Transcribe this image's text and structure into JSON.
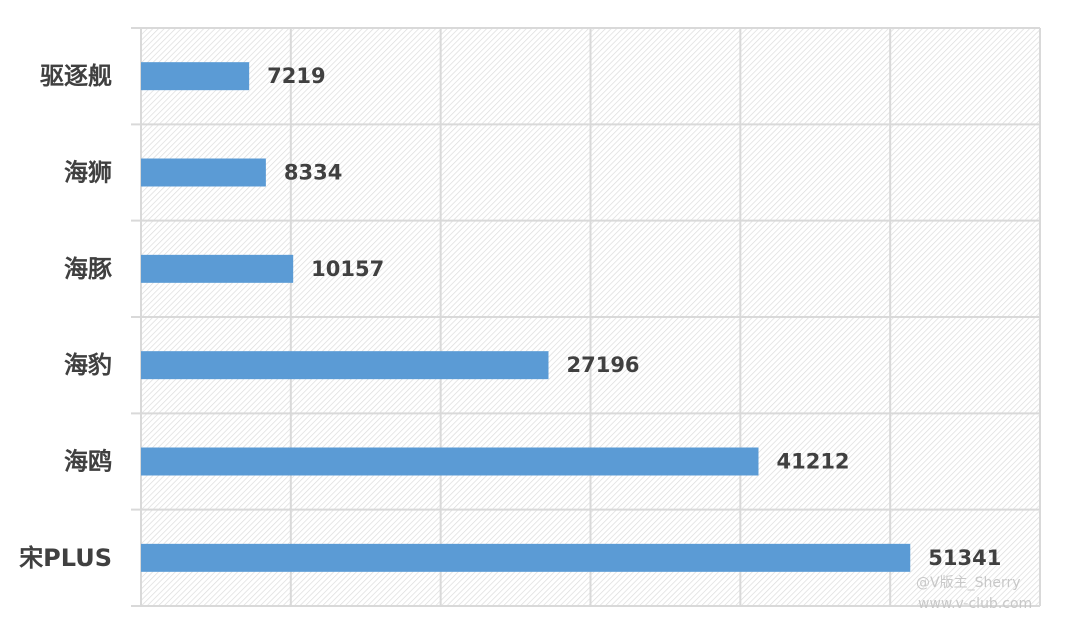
{
  "chart_data": {
    "type": "bar",
    "orientation": "horizontal",
    "categories": [
      "驱逐舰",
      "海狮",
      "海豚",
      "海豹",
      "海鸥",
      "宋PLUS"
    ],
    "values": [
      7219,
      8334,
      10157,
      27196,
      41212,
      51341
    ],
    "xlim": [
      0,
      60000
    ],
    "grid": true,
    "bar_color": "#5b9bd5",
    "data_labels": true,
    "legend": "none",
    "title": "",
    "xlabel": "",
    "ylabel": ""
  },
  "watermark": {
    "line1": "@V版主_Sherry",
    "line2": "www.v-club.com"
  }
}
